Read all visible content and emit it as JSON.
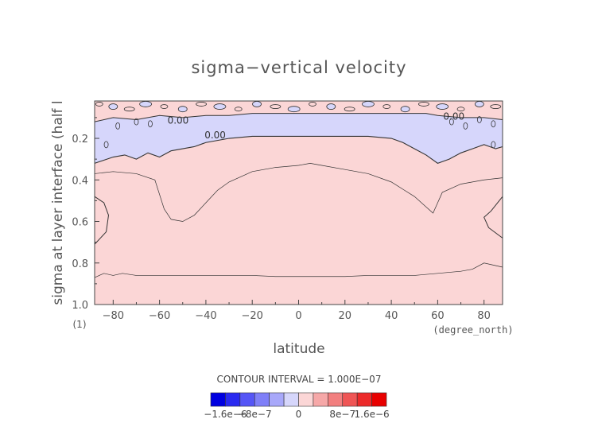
{
  "chart_data": {
    "type": "heatmap",
    "title": "sigma−vertical velocity",
    "xlabel": "latitude",
    "ylabel": "sigma at layer interface (half l",
    "yunit": "(1)",
    "xunit": "(degree_north)",
    "xlim": [
      -88,
      88
    ],
    "ylim": [
      1.0,
      0.02
    ],
    "x_ticks": [
      -80,
      -60,
      -40,
      -20,
      0,
      20,
      40,
      60,
      80
    ],
    "x_tick_labels": [
      "−80",
      "−60",
      "−40",
      "−20",
      "0",
      "20",
      "40",
      "60",
      "80"
    ],
    "y_ticks": [
      0.2,
      0.4,
      0.6,
      0.8,
      1.0
    ],
    "y_tick_labels": [
      "0.2",
      "0.4",
      "0.6",
      "0.8",
      "1.0"
    ],
    "contour_interval_text": "CONTOUR INTERVAL = 1.000E−07",
    "contour_labels": [
      {
        "text": "0.00",
        "lat": -52,
        "sigma": 0.11
      },
      {
        "text": "0.00",
        "lat": -36,
        "sigma": 0.18
      },
      {
        "text": "0.00",
        "lat": 67,
        "sigma": 0.09
      }
    ],
    "regions": [
      {
        "name": "negative",
        "color": "#d6d6fb",
        "desc": "upper band sigma ~0.08-0.30"
      },
      {
        "name": "positive",
        "color": "#fbd6d6",
        "desc": "rest of domain"
      }
    ],
    "contours": {
      "zero_upper_boundary": {
        "lat": [
          -88,
          -80,
          -70,
          -60,
          -50,
          -40,
          -30,
          -20,
          -10,
          0,
          10,
          20,
          30,
          40,
          50,
          55,
          60,
          70,
          80,
          88
        ],
        "sigma": [
          0.12,
          0.1,
          0.11,
          0.09,
          0.1,
          0.09,
          0.09,
          0.08,
          0.08,
          0.08,
          0.08,
          0.08,
          0.08,
          0.08,
          0.08,
          0.08,
          0.09,
          0.1,
          0.1,
          0.11
        ]
      },
      "zero_lower_boundary": {
        "lat": [
          -88,
          -80,
          -75,
          -70,
          -65,
          -60,
          -55,
          -50,
          -45,
          -40,
          -30,
          -20,
          -10,
          0,
          10,
          20,
          30,
          40,
          45,
          50,
          55,
          60,
          65,
          70,
          75,
          80,
          85,
          88
        ],
        "sigma": [
          0.32,
          0.29,
          0.28,
          0.3,
          0.27,
          0.29,
          0.26,
          0.25,
          0.24,
          0.22,
          0.2,
          0.19,
          0.19,
          0.19,
          0.19,
          0.19,
          0.19,
          0.2,
          0.22,
          0.25,
          0.28,
          0.32,
          0.3,
          0.27,
          0.25,
          0.23,
          0.25,
          0.24
        ]
      },
      "positive_1e7": {
        "lat": [
          -88,
          -80,
          -70,
          -62,
          -58,
          -55,
          -50,
          -45,
          -40,
          -35,
          -30,
          -20,
          -10,
          0,
          5,
          10,
          20,
          30,
          40,
          50,
          55,
          58,
          62,
          70,
          80,
          88
        ],
        "sigma": [
          0.37,
          0.36,
          0.37,
          0.4,
          0.54,
          0.59,
          0.6,
          0.57,
          0.51,
          0.45,
          0.41,
          0.36,
          0.34,
          0.33,
          0.32,
          0.33,
          0.35,
          0.37,
          0.41,
          0.48,
          0.53,
          0.56,
          0.46,
          0.42,
          0.4,
          0.39
        ]
      },
      "positive_2e7_left": {
        "lat": [
          -88,
          -84,
          -82,
          -83,
          -88
        ],
        "sigma": [
          0.48,
          0.51,
          0.57,
          0.65,
          0.71
        ]
      },
      "positive_2e7_right": {
        "lat": [
          88,
          83,
          80,
          82,
          88
        ],
        "sigma": [
          0.48,
          0.55,
          0.58,
          0.63,
          0.68
        ]
      },
      "lower_positive": {
        "lat": [
          -88,
          -84,
          -80,
          -76,
          -70,
          -60,
          -50,
          -40,
          -30,
          -20,
          -10,
          0,
          10,
          20,
          30,
          40,
          50,
          60,
          70,
          75,
          80,
          84,
          88
        ],
        "sigma": [
          0.87,
          0.85,
          0.86,
          0.85,
          0.86,
          0.86,
          0.86,
          0.86,
          0.86,
          0.86,
          0.865,
          0.865,
          0.865,
          0.865,
          0.86,
          0.86,
          0.86,
          0.85,
          0.84,
          0.83,
          0.8,
          0.81,
          0.82
        ]
      }
    },
    "colorbar": {
      "colors": [
        "#0000e0",
        "#2a2af0",
        "#5555f6",
        "#7f7ff8",
        "#a8a8fa",
        "#d6d6fb",
        "#fbd6d6",
        "#f6a8a8",
        "#f27f7f",
        "#ef5555",
        "#ec2a2a",
        "#e80000"
      ],
      "labels": [
        {
          "text": "−1.6e−6",
          "index": 1
        },
        {
          "text": "−8e−7",
          "index": 3
        },
        {
          "text": "0",
          "index": 6
        },
        {
          "text": "8e−7",
          "index": 9
        },
        {
          "text": "1.6e−6",
          "index": 11
        }
      ]
    },
    "grid": false
  }
}
